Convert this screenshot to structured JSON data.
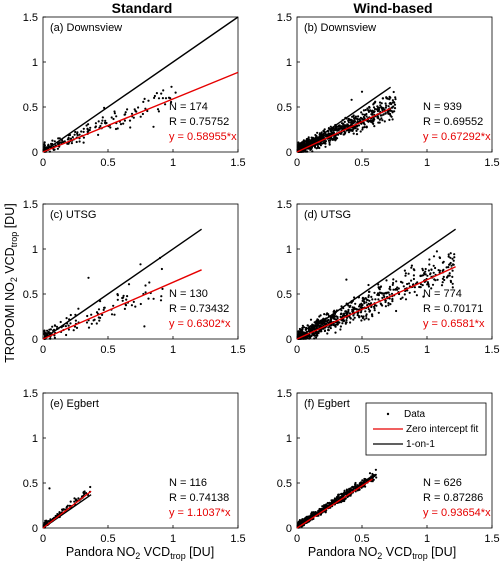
{
  "figure": {
    "col_titles": [
      "Standard",
      "Wind-based"
    ],
    "ylabel": {
      "main": "TROPOMI NO",
      "sub1": "2",
      "mid": " VCD",
      "sub2": "trop",
      "end": " [DU]"
    },
    "xlabel": {
      "main": "Pandora NO",
      "sub1": "2",
      "mid": " VCD",
      "sub2": "trop",
      "end": " [DU]"
    },
    "legend": {
      "data": "Data",
      "fit": "Zero intercept fit",
      "one": "1-on-1"
    },
    "colors": {
      "fit": "#e60000",
      "one": "#000000",
      "data": "#000000"
    }
  },
  "chart_data": [
    {
      "type": "scatter",
      "panel": "(a) Downsview",
      "n_text": "N = 174",
      "r_text": "R = 0.75752",
      "fit_text": "y = 0.58955*x",
      "slope": 0.58955,
      "fit_x": [
        0,
        1.5
      ],
      "one_x": [
        0,
        1.5
      ],
      "xlim": [
        0,
        1.5
      ],
      "ylim": [
        0,
        1.5
      ],
      "xticks": [
        "0",
        "0.5",
        "1",
        "1.5"
      ],
      "yticks": [
        "0",
        "0.5",
        "1",
        "1.5"
      ],
      "n": 174,
      "xmax": 1.0,
      "scatter": 0.09,
      "seed": 11,
      "outliers": [
        [
          0.85,
          0.28
        ],
        [
          1.02,
          0.66
        ],
        [
          0.55,
          0.45
        ],
        [
          0.47,
          0.49
        ],
        [
          0.6,
          0.31
        ]
      ]
    },
    {
      "type": "scatter",
      "panel": "(b) Downsview",
      "n_text": "N = 939",
      "r_text": "R = 0.69552",
      "fit_text": "y = 0.67292*x",
      "slope": 0.67292,
      "fit_x": [
        0,
        0.72
      ],
      "one_x": [
        0,
        0.72
      ],
      "xlim": [
        0,
        1.5
      ],
      "ylim": [
        0,
        1.5
      ],
      "xticks": [
        "0",
        "0.5",
        "1",
        "1.5"
      ],
      "yticks": [
        "0",
        "0.5",
        "1",
        "1.5"
      ],
      "n": 939,
      "xmax": 0.75,
      "scatter": 0.1,
      "seed": 23,
      "outliers": [
        [
          0.5,
          0.67
        ],
        [
          0.42,
          0.58
        ],
        [
          0.6,
          0.55
        ]
      ]
    },
    {
      "type": "scatter",
      "panel": "(c) UTSG",
      "n_text": "N = 130",
      "r_text": "R = 0.73432",
      "fit_text": "y = 0.6302*x",
      "slope": 0.6302,
      "fit_x": [
        0,
        1.22
      ],
      "one_x": [
        0,
        1.22
      ],
      "xlim": [
        0,
        1.5
      ],
      "ylim": [
        0,
        1.5
      ],
      "xticks": [
        "0",
        "0.5",
        "1",
        "1.5"
      ],
      "yticks": [
        "0",
        "0.5",
        "1",
        "1.5"
      ],
      "n": 130,
      "xmax": 0.95,
      "scatter": 0.12,
      "seed": 37,
      "outliers": [
        [
          0.75,
          0.83
        ],
        [
          0.9,
          0.9
        ],
        [
          0.62,
          0.48
        ],
        [
          0.35,
          0.68
        ],
        [
          0.78,
          0.14
        ],
        [
          0.55,
          0.27
        ]
      ]
    },
    {
      "type": "scatter",
      "panel": "(d) UTSG",
      "n_text": "N = 774",
      "r_text": "R = 0.70171",
      "fit_text": "y = 0.6581*x",
      "slope": 0.6581,
      "fit_x": [
        0,
        1.22
      ],
      "one_x": [
        0,
        1.22
      ],
      "xlim": [
        0,
        1.5
      ],
      "ylim": [
        0,
        1.5
      ],
      "xticks": [
        "0",
        "0.5",
        "1",
        "1.5"
      ],
      "yticks": [
        "0",
        "0.5",
        "1",
        "1.5"
      ],
      "n": 774,
      "xmax": 1.2,
      "scatter": 0.12,
      "seed": 51,
      "outliers": [
        [
          1.2,
          0.83
        ],
        [
          1.1,
          0.9
        ],
        [
          0.38,
          0.66
        ],
        [
          0.55,
          0.6
        ],
        [
          0.95,
          0.7
        ]
      ]
    },
    {
      "type": "scatter",
      "panel": "(e) Egbert",
      "n_text": "N = 116",
      "r_text": "R = 0.74138",
      "fit_text": "y = 1.1037*x",
      "slope": 1.1037,
      "fit_x": [
        0,
        0.37
      ],
      "one_x": [
        0,
        0.37
      ],
      "xlim": [
        0,
        1.5
      ],
      "ylim": [
        0,
        1.5
      ],
      "xticks": [
        "0",
        "0.5",
        "1",
        "1.5"
      ],
      "yticks": [
        "0",
        "0.5",
        "1",
        "1.5"
      ],
      "n": 116,
      "xmax": 0.36,
      "scatter": 0.05,
      "seed": 67,
      "outliers": [
        [
          0.05,
          0.44
        ],
        [
          0.3,
          0.35
        ]
      ]
    },
    {
      "type": "scatter",
      "panel": "(f) Egbert",
      "n_text": "N = 626",
      "r_text": "R = 0.87286",
      "fit_text": "y = 0.93654*x",
      "slope": 0.93654,
      "fit_x": [
        0,
        0.58
      ],
      "one_x": [
        0,
        0.58
      ],
      "xlim": [
        0,
        1.5
      ],
      "ylim": [
        0,
        1.5
      ],
      "xticks": [
        "0",
        "0.5",
        "1",
        "1.5"
      ],
      "yticks": [
        "0",
        "0.5",
        "1",
        "1.5"
      ],
      "n": 626,
      "xmax": 0.6,
      "scatter": 0.05,
      "seed": 79,
      "outliers": [
        [
          0.58,
          0.6
        ],
        [
          0.45,
          0.5
        ]
      ]
    }
  ]
}
